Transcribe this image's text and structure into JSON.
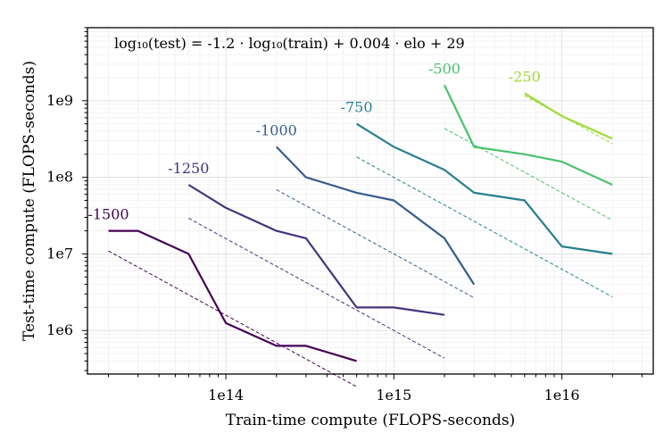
{
  "chart_data": {
    "type": "line",
    "xscale": "log",
    "yscale": "log",
    "xlim": [
      15000000000000,
      35000000000000000
    ],
    "ylim": [
      270000,
      9000000000
    ],
    "xlabel": "Train-time compute (FLOPS-seconds)",
    "ylabel": "Test-time compute (FLOPS-seconds)",
    "annotation": "log₁₀(test) = -1.2 · log₁₀(train) + 0.004 · elo + 29",
    "fit": {
      "a": -1.2,
      "b": 0.004,
      "c": 29
    },
    "grid": true,
    "x_ticks": [
      {
        "value": 100000000000000,
        "label": "1e14"
      },
      {
        "value": 1000000000000000,
        "label": "1e15"
      },
      {
        "value": 10000000000000000,
        "label": "1e16"
      }
    ],
    "y_ticks": [
      {
        "value": 1000000,
        "label": "1e6"
      },
      {
        "value": 10000000,
        "label": "1e7"
      },
      {
        "value": 100000000,
        "label": "1e8"
      },
      {
        "value": 1000000000,
        "label": "1e9"
      }
    ],
    "series": [
      {
        "name": "-1500",
        "elo": -1500,
        "color": "#440154",
        "x": [
          20000000000000,
          30000000000000,
          60000000000000,
          100000000000000,
          200000000000000,
          300000000000000,
          600000000000000
        ],
        "y": [
          20000000,
          20000000,
          10000000,
          1250000,
          630000,
          630000,
          400000
        ],
        "fit_x": [
          20000000000000,
          600000000000000
        ]
      },
      {
        "name": "-1250",
        "elo": -1250,
        "color": "#46327e",
        "x": [
          60000000000000,
          100000000000000,
          200000000000000,
          300000000000000,
          600000000000000,
          1000000000000000,
          2000000000000000
        ],
        "y": [
          80000000,
          40000000,
          20000000,
          16000000,
          2000000,
          2000000,
          1600000
        ],
        "fit_x": [
          60000000000000,
          2000000000000000
        ]
      },
      {
        "name": "-1000",
        "elo": -1000,
        "color": "#365c8d",
        "x": [
          200000000000000,
          300000000000000,
          600000000000000,
          1000000000000000,
          2000000000000000,
          3000000000000000
        ],
        "y": [
          250000000,
          100000000,
          63000000,
          50000000,
          16000000,
          4000000
        ],
        "fit_x": [
          200000000000000,
          3000000000000000
        ]
      },
      {
        "name": "-750",
        "elo": -750,
        "color": "#277f8e",
        "x": [
          600000000000000,
          1000000000000000,
          2000000000000000,
          3000000000000000,
          6000000000000000,
          10000000000000000,
          20000000000000000
        ],
        "y": [
          500000000,
          250000000,
          125000000,
          63000000,
          50000000,
          12500000,
          10000000
        ],
        "fit_x": [
          600000000000000,
          20000000000000000
        ]
      },
      {
        "name": "-500",
        "elo": -500,
        "color": "#4ac16d",
        "x": [
          2000000000000000,
          3000000000000000,
          6000000000000000,
          10000000000000000,
          20000000000000000
        ],
        "y": [
          1600000000,
          250000000,
          200000000,
          160000000,
          80000000
        ],
        "fit_x": [
          2000000000000000,
          20000000000000000
        ]
      },
      {
        "name": "-250",
        "elo": -250,
        "color": "#a0da39",
        "x": [
          6000000000000000,
          10000000000000000,
          20000000000000000
        ],
        "y": [
          1250000000,
          630000000,
          320000000
        ],
        "fit_x": [
          6000000000000000,
          20000000000000000
        ]
      }
    ]
  }
}
